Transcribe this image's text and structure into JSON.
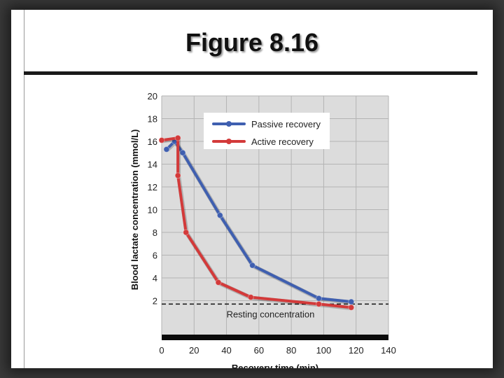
{
  "page": {
    "title": "Figure 8.16"
  },
  "chart_data": {
    "type": "line",
    "xlabel": "Recovery time (min)",
    "ylabel": "Blood lactate concentration (mmol/L)",
    "xlim": [
      0,
      140
    ],
    "ylim": [
      0,
      20
    ],
    "xticks": [
      0,
      20,
      40,
      60,
      80,
      100,
      120,
      140
    ],
    "yticks": [
      2,
      4,
      6,
      8,
      10,
      12,
      14,
      16,
      18,
      20
    ],
    "grid": true,
    "legend": "top-right",
    "series": [
      {
        "name": "Passive recovery",
        "color": "#3f5fb0",
        "x": [
          3,
          8,
          13,
          36,
          56,
          97,
          117
        ],
        "y": [
          15.3,
          16,
          15,
          9.5,
          5.1,
          2.2,
          1.9
        ]
      },
      {
        "name": "Active recovery",
        "color": "#d33a3a",
        "x": [
          0,
          10,
          10,
          15,
          35,
          55,
          97,
          117
        ],
        "y": [
          16.1,
          16.3,
          13,
          8,
          3.6,
          2.3,
          1.7,
          1.4
        ]
      }
    ],
    "reference_line": {
      "y": 1.7,
      "label": "Resting concentration"
    }
  }
}
